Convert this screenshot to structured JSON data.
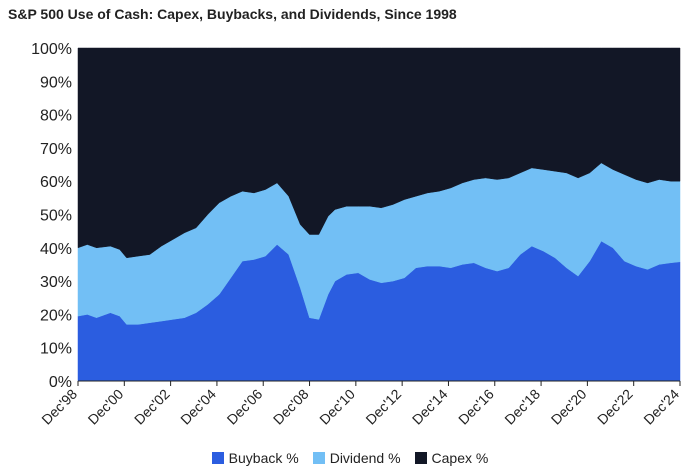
{
  "chart_data": {
    "type": "area",
    "stacked": true,
    "title": "S&P 500 Use of Cash: Capex, Buybacks, and Dividends, Since 1998",
    "x": [
      1998.9,
      1999.3,
      1999.7,
      2000.3,
      2000.7,
      2001.0,
      2001.5,
      2002.0,
      2002.5,
      2003.0,
      2003.5,
      2004.0,
      2004.5,
      2005.0,
      2005.5,
      2006.0,
      2006.5,
      2007.0,
      2007.5,
      2008.0,
      2008.5,
      2008.9,
      2009.3,
      2009.7,
      2010.0,
      2010.5,
      2011.0,
      2011.5,
      2012.0,
      2012.5,
      2013.0,
      2013.5,
      2014.0,
      2014.5,
      2015.0,
      2015.5,
      2016.0,
      2016.5,
      2017.0,
      2017.5,
      2018.0,
      2018.5,
      2019.0,
      2019.5,
      2020.0,
      2020.5,
      2021.0,
      2021.5,
      2022.0,
      2022.5,
      2023.0,
      2023.5,
      2024.0,
      2024.5,
      2024.9
    ],
    "series": [
      {
        "name": "Buyback %",
        "color": "#2b5de0",
        "values": [
          19.5,
          20.0,
          19.0,
          20.5,
          19.5,
          17.0,
          17.0,
          17.5,
          18.0,
          18.5,
          19.0,
          20.5,
          23.0,
          26.0,
          31.0,
          36.0,
          36.5,
          37.5,
          41.0,
          38.0,
          28.0,
          19.0,
          18.5,
          26.0,
          30.0,
          32.0,
          32.5,
          30.5,
          29.5,
          30.0,
          31.0,
          34.0,
          34.5,
          34.5,
          34.0,
          35.0,
          35.5,
          34.0,
          33.0,
          34.0,
          38.0,
          40.5,
          39.0,
          37.0,
          34.0,
          31.5,
          36.0,
          42.0,
          40.0,
          36.0,
          34.5,
          33.5,
          35.0,
          35.5,
          35.8
        ]
      },
      {
        "name": "Dividend %",
        "color": "#72bff5",
        "values": [
          20.5,
          21.0,
          21.0,
          20.0,
          20.0,
          20.0,
          20.5,
          20.5,
          22.5,
          24.0,
          25.5,
          25.5,
          27.0,
          27.5,
          24.5,
          21.0,
          20.0,
          20.0,
          18.5,
          17.5,
          19.0,
          25.0,
          25.5,
          23.5,
          21.5,
          20.5,
          20.0,
          22.0,
          22.5,
          23.0,
          23.5,
          21.5,
          22.0,
          22.5,
          24.0,
          24.5,
          25.0,
          27.0,
          27.5,
          27.0,
          24.5,
          23.5,
          24.5,
          26.0,
          28.5,
          29.5,
          26.5,
          23.5,
          23.5,
          26.0,
          26.0,
          26.0,
          25.5,
          24.5,
          24.2
        ]
      },
      {
        "name": "Capex %",
        "color": "#121726",
        "values": [
          60.0,
          59.0,
          60.0,
          59.5,
          60.5,
          63.0,
          62.5,
          62.0,
          59.5,
          57.5,
          55.5,
          54.0,
          50.0,
          46.5,
          44.5,
          43.0,
          43.5,
          42.5,
          40.5,
          44.5,
          53.0,
          56.0,
          56.0,
          50.5,
          48.5,
          47.5,
          47.5,
          47.5,
          48.0,
          47.0,
          45.5,
          44.5,
          43.5,
          43.0,
          42.0,
          40.5,
          39.5,
          39.0,
          39.5,
          39.0,
          37.5,
          36.0,
          36.5,
          37.0,
          37.5,
          39.0,
          37.5,
          34.5,
          36.5,
          38.0,
          39.5,
          40.5,
          39.5,
          40.0,
          40.0
        ]
      }
    ],
    "ylim": [
      0,
      100
    ],
    "yticks": [
      "0%",
      "10%",
      "20%",
      "30%",
      "40%",
      "50%",
      "60%",
      "70%",
      "80%",
      "90%",
      "100%"
    ],
    "xticks": [
      {
        "label": "Dec'98",
        "x": 1998.9
      },
      {
        "label": "Dec'00",
        "x": 2000.9
      },
      {
        "label": "Dec'02",
        "x": 2002.9
      },
      {
        "label": "Dec'04",
        "x": 2004.9
      },
      {
        "label": "Dec'06",
        "x": 2006.9
      },
      {
        "label": "Dec'08",
        "x": 2008.9
      },
      {
        "label": "Dec'10",
        "x": 2010.9
      },
      {
        "label": "Dec'12",
        "x": 2012.9
      },
      {
        "label": "Dec'14",
        "x": 2014.9
      },
      {
        "label": "Dec'16",
        "x": 2016.9
      },
      {
        "label": "Dec'18",
        "x": 2018.9
      },
      {
        "label": "Dec'20",
        "x": 2020.9
      },
      {
        "label": "Dec'22",
        "x": 2022.9
      },
      {
        "label": "Dec'24",
        "x": 2024.9
      }
    ],
    "xlim": [
      1998.9,
      2024.9
    ],
    "grid": false,
    "legend_position": "bottom"
  }
}
